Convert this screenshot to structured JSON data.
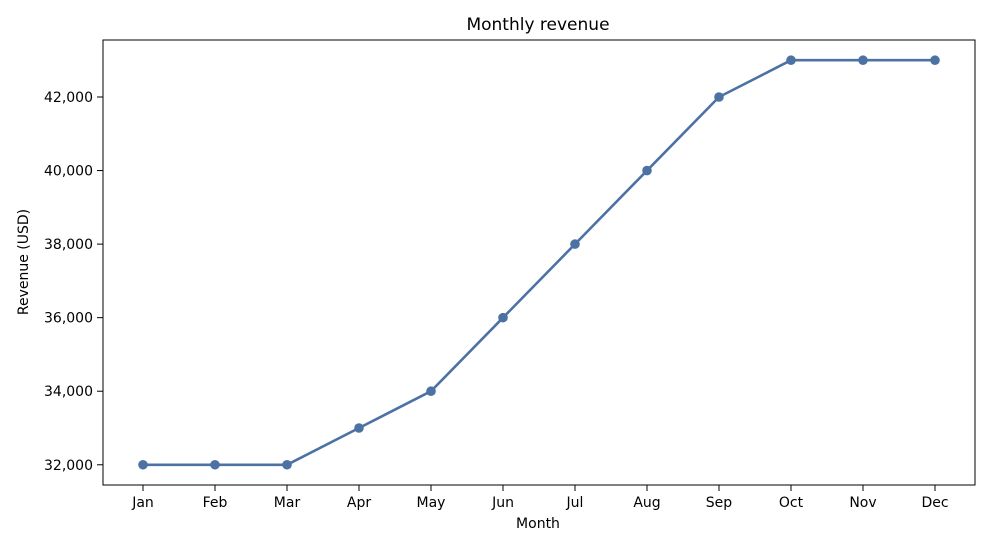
{
  "chart_data": {
    "type": "line",
    "title": "Monthly revenue",
    "xlabel": "Month",
    "ylabel": "Revenue (USD)",
    "categories": [
      "Jan",
      "Feb",
      "Mar",
      "Apr",
      "May",
      "Jun",
      "Jul",
      "Aug",
      "Sep",
      "Oct",
      "Nov",
      "Dec"
    ],
    "values": [
      32000,
      32000,
      32000,
      33000,
      34000,
      36000,
      38000,
      40000,
      42000,
      43000,
      43000,
      43000
    ],
    "ylim": [
      31450,
      43550
    ],
    "yticks": [
      32000,
      34000,
      36000,
      38000,
      40000,
      42000
    ],
    "ytick_labels": [
      "32,000",
      "34,000",
      "36,000",
      "38,000",
      "40,000",
      "42,000"
    ],
    "line_color": "#4c72a4",
    "grid": false,
    "legend": "none"
  }
}
